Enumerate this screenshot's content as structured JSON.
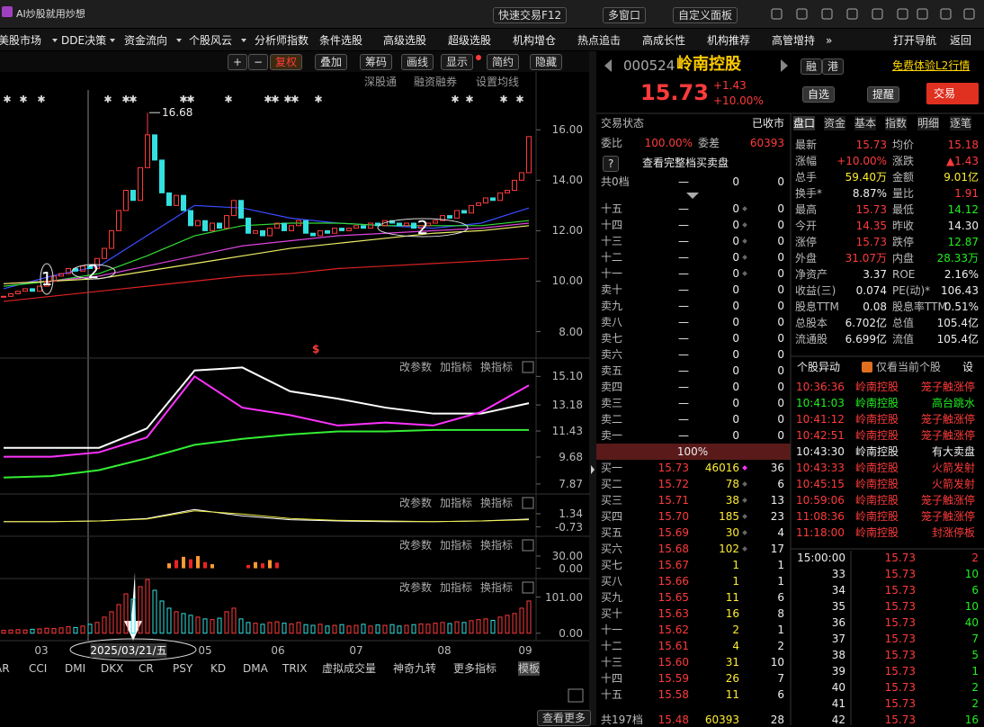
{
  "title_bar": {
    "app_name": "AI炒股就用炒想",
    "buttons": [
      "快速交易F12",
      "多窗口",
      "自定义面板"
    ]
  },
  "menu": {
    "items": [
      "美股市场",
      "DDE决策",
      "资金流向",
      "个股风云",
      "分析师指数",
      "条件选股",
      "高级选股",
      "超级选股",
      "机构增仓",
      "热点追击",
      "高成长性",
      "机构推荐",
      "高管增持",
      "»"
    ],
    "right": [
      "打开导航",
      "返回"
    ]
  },
  "toolbar": {
    "buttons": [
      "+",
      "−",
      "复权",
      "叠加",
      "筹码",
      "画线",
      "显示",
      "简约",
      "隐藏"
    ],
    "links": [
      "深股通",
      "融资融券",
      "设置均线"
    ]
  },
  "kline": {
    "ylim": [
      6.95,
      17.65
    ],
    "yticks": [
      {
        "value": 16,
        "label": "16.00"
      },
      {
        "value": 14,
        "label": "14.00"
      },
      {
        "value": 12,
        "label": "12.00"
      },
      {
        "value": 10,
        "label": "10.00"
      },
      {
        "value": 8,
        "label": "8.00"
      }
    ],
    "closes": [
      9.4,
      9.5,
      9.6,
      9.7,
      9.6,
      9.8,
      10.0,
      10.2,
      10.3,
      10.5,
      10.4,
      10.6,
      10.5,
      10.9,
      11.3,
      12.0,
      12.8,
      13.6,
      13.2,
      14.5,
      15.8,
      14.8,
      13.5,
      13.0,
      13.4,
      12.8,
      12.2,
      12.4,
      12.0,
      12.3,
      12.1,
      12.6,
      13.2,
      12.5,
      11.9,
      12.0,
      11.8,
      12.1,
      12.3,
      12.0,
      12.2,
      12.4,
      11.9,
      11.8,
      12.0,
      11.9,
      12.1,
      12.0,
      12.1,
      12.2,
      12.1,
      12.3,
      12.2,
      12.4,
      12.3,
      12.2,
      12.3,
      12.1,
      12.2,
      12.3,
      12.4,
      12.6,
      12.5,
      12.8,
      12.7,
      13.0,
      13.1,
      13.3,
      13.2,
      13.5,
      13.6,
      14.0,
      14.3,
      15.73
    ],
    "high": 16.68,
    "high_label": "16.68",
    "marker": "$",
    "annotations": [
      "1",
      "2",
      "2"
    ],
    "ma": [
      {
        "color": "#3a4cff",
        "values": [
          9.7,
          10.2,
          10.6,
          11.8,
          13.0,
          12.9,
          12.5,
          12.3,
          12.2,
          12.1,
          12.3,
          12.9
        ]
      },
      {
        "color": "#33dd33",
        "values": [
          9.8,
          10.0,
          10.3,
          11.0,
          11.8,
          12.2,
          12.3,
          12.3,
          12.2,
          12.2,
          12.2,
          12.4
        ]
      },
      {
        "color": "#dd44dd",
        "values": [
          9.9,
          10.0,
          10.2,
          10.6,
          11.0,
          11.4,
          11.6,
          11.8,
          11.9,
          12.0,
          12.1,
          12.3
        ]
      },
      {
        "color": "#eeee66",
        "values": [
          9.9,
          10.0,
          10.1,
          10.4,
          10.7,
          11.0,
          11.3,
          11.5,
          11.7,
          11.9,
          12.0,
          12.2
        ]
      },
      {
        "color": "#dd2222",
        "values": [
          9.2,
          9.4,
          9.6,
          9.8,
          10.0,
          10.2,
          10.3,
          10.5,
          10.6,
          10.7,
          10.8,
          10.9
        ]
      }
    ]
  },
  "panel_actions": [
    "改参数",
    "加指标",
    "换指标"
  ],
  "indicators": [
    {
      "ylim": [
        7.26,
        16.33
      ],
      "yticks": [
        {
          "value": 15.1,
          "label": "15.10"
        },
        13.18,
        11.43,
        9.68,
        7.87
      ],
      "lines": [
        {
          "color": "#ffffff",
          "values": [
            10.3,
            10.3,
            10.3,
            11.6,
            15.5,
            15.7,
            14.1,
            13.6,
            13.0,
            12.6,
            12.6,
            13.3
          ]
        },
        {
          "color": "#ff33ff",
          "values": [
            9.7,
            9.7,
            10.0,
            11.0,
            15.1,
            13.0,
            12.5,
            11.8,
            12.0,
            11.8,
            12.7,
            14.5
          ]
        },
        {
          "color": "#33ee33",
          "values": [
            8.3,
            8.4,
            8.8,
            9.6,
            10.5,
            10.9,
            11.2,
            11.4,
            11.4,
            11.5,
            11.5,
            11.5
          ]
        }
      ]
    },
    {
      "ylim": [
        -2.06,
        4.45
      ],
      "yticks": [
        1.34,
        -0.73
      ],
      "lines": [
        {
          "color": "#ffffff",
          "values": [
            0.1,
            0.1,
            0.2,
            0.6,
            2.0,
            1.0,
            0.4,
            0.2,
            0.1,
            0.1,
            0.2,
            0.5
          ]
        },
        {
          "color": "#eeee44",
          "values": [
            0.1,
            0.1,
            0.2,
            0.5,
            1.8,
            1.3,
            0.6,
            0.3,
            0.2,
            0.1,
            0.2,
            0.4
          ]
        }
      ]
    },
    {
      "ylim": [
        -23.1,
        78.5
      ],
      "yticks": [
        {
          "value": 30,
          "label": "30.00"
        },
        {
          "value": 0,
          "label": "0.00"
        }
      ],
      "bars": [
        0,
        0,
        0,
        0,
        0,
        0,
        0,
        0,
        0,
        0,
        0,
        0,
        0,
        0,
        0,
        0,
        0,
        0,
        0,
        0,
        0,
        0,
        0,
        12,
        20,
        28,
        22,
        30,
        15,
        10,
        0,
        0,
        0,
        0,
        8,
        15,
        12,
        20,
        14,
        0,
        0,
        0,
        0,
        0,
        0,
        0,
        0,
        0,
        0,
        0,
        0,
        0,
        0,
        0,
        0,
        0,
        0,
        0,
        0,
        0,
        0,
        0,
        0,
        0,
        0,
        0,
        0,
        0,
        0,
        0,
        0,
        0,
        0,
        0
      ]
    },
    {
      "ylim": [
        -20.7,
        152.8
      ],
      "yticks": [
        {
          "value": 101,
          "label": "101.00"
        },
        {
          "value": 0,
          "label": "0.00"
        }
      ],
      "bars": [
        8,
        9,
        10,
        9,
        11,
        12,
        14,
        13,
        15,
        18,
        16,
        20,
        25,
        30,
        45,
        60,
        80,
        110,
        95,
        130,
        150,
        120,
        90,
        70,
        60,
        55,
        50,
        45,
        40,
        38,
        42,
        60,
        70,
        40,
        30,
        28,
        25,
        30,
        32,
        28,
        26,
        30,
        24,
        22,
        25,
        20,
        22,
        24,
        20,
        22,
        25,
        20,
        23,
        22,
        24,
        20,
        22,
        24,
        26,
        25,
        28,
        30,
        27,
        32,
        30,
        35,
        38,
        40,
        36,
        45,
        50,
        55,
        70,
        90
      ]
    }
  ],
  "x_axis": {
    "months": [
      "03",
      "05",
      "06",
      "07",
      "08",
      "09"
    ],
    "cursor_date": "2025/03/21/五"
  },
  "indicator_tabs": [
    "AR",
    "CCI",
    "DMI",
    "DKX",
    "CR",
    "PSY",
    "KD",
    "DMA",
    "TRIX",
    "虚拟成交量",
    "神奇九转",
    "更多指标",
    "模板"
  ],
  "more": "查看更多",
  "quote": {
    "code": "000524",
    "name": "岭南控股",
    "tags": [
      "融",
      "港"
    ],
    "l2": "免费体验L2行情",
    "price": "15.73",
    "change": "+1.43",
    "pct": "+10.00%",
    "buttons": [
      "自选",
      "提醒",
      "交易"
    ],
    "status_label": "交易状态",
    "status": "已收市",
    "wb_label": "委比",
    "wb": "100.00%",
    "wc_label": "委差",
    "wc": "60393",
    "help": "?",
    "full_book": "查看完整档买卖盘",
    "ask_total": [
      "共0档",
      "—",
      "0",
      "0"
    ],
    "asks": [
      [
        "十五",
        "—",
        "0",
        "0"
      ],
      [
        "十四",
        "—",
        "0",
        "0"
      ],
      [
        "十三",
        "—",
        "0",
        "0"
      ],
      [
        "十二",
        "—",
        "0",
        "0"
      ],
      [
        "十一",
        "—",
        "0",
        "0"
      ],
      [
        "卖十",
        "—",
        "0",
        "0"
      ],
      [
        "卖九",
        "—",
        "0",
        "0"
      ],
      [
        "卖八",
        "—",
        "0",
        "0"
      ],
      [
        "卖七",
        "—",
        "0",
        "0"
      ],
      [
        "卖六",
        "—",
        "0",
        "0"
      ],
      [
        "卖五",
        "—",
        "0",
        "0"
      ],
      [
        "卖四",
        "—",
        "0",
        "0"
      ],
      [
        "卖三",
        "—",
        "0",
        "0"
      ],
      [
        "卖二",
        "—",
        "0",
        "0"
      ],
      [
        "卖一",
        "—",
        "0",
        "0"
      ]
    ],
    "mid": "100%",
    "bids": [
      [
        "买一",
        "15.73",
        "46016",
        "36"
      ],
      [
        "买二",
        "15.72",
        "78",
        "6"
      ],
      [
        "买三",
        "15.71",
        "38",
        "13"
      ],
      [
        "买四",
        "15.70",
        "185",
        "23"
      ],
      [
        "买五",
        "15.69",
        "30",
        "4"
      ],
      [
        "买六",
        "15.68",
        "102",
        "17"
      ],
      [
        "买七",
        "15.67",
        "1",
        "1"
      ],
      [
        "买八",
        "15.66",
        "1",
        "1"
      ],
      [
        "买九",
        "15.65",
        "11",
        "6"
      ],
      [
        "买十",
        "15.63",
        "16",
        "8"
      ],
      [
        "十一",
        "15.62",
        "2",
        "1"
      ],
      [
        "十二",
        "15.61",
        "4",
        "2"
      ],
      [
        "十三",
        "15.60",
        "31",
        "10"
      ],
      [
        "十四",
        "15.59",
        "26",
        "7"
      ],
      [
        "十五",
        "15.58",
        "11",
        "6"
      ]
    ],
    "bid_total": [
      "共197档",
      "15.48",
      "60393",
      "28"
    ],
    "tabs": [
      "盘口",
      "资金",
      "基本",
      "指数",
      "明细",
      "逐笔"
    ],
    "stats": [
      [
        "最新",
        "15.73",
        "均价",
        "15.18"
      ],
      [
        "涨幅",
        "+10.00%",
        "涨跌",
        "▲1.43"
      ],
      [
        "总手",
        "59.40万",
        "金额",
        "9.01亿"
      ],
      [
        "换手*",
        "8.87%",
        "量比",
        "1.91"
      ],
      [
        "最高",
        "15.73",
        "最低",
        "14.12"
      ],
      [
        "今开",
        "14.35",
        "昨收",
        "14.30"
      ],
      [
        "涨停",
        "15.73",
        "跌停",
        "12.87"
      ],
      [
        "外盘",
        "31.07万",
        "内盘",
        "28.33万"
      ],
      [
        "净资产",
        "3.37",
        "ROE",
        "2.16%"
      ],
      [
        "收益(三)",
        "0.074",
        "PE(动)*",
        "106.43"
      ],
      [
        "股息TTM",
        "0.08",
        "股息率TTM",
        "0.51%"
      ],
      [
        "总股本",
        "6.702亿",
        "总值",
        "105.4亿"
      ],
      [
        "流通股",
        "6.699亿",
        "流值",
        "105.4亿"
      ]
    ],
    "alerts_title": "个股异动",
    "alerts_filter": "仅看当前个股",
    "alerts_settings": "设",
    "alerts": [
      [
        "10:36:36",
        "岭南控股",
        "笼子触涨停"
      ],
      [
        "10:41:03",
        "岭南控股",
        "高台跳水"
      ],
      [
        "10:41:12",
        "岭南控股",
        "笼子触涨停"
      ],
      [
        "10:42:51",
        "岭南控股",
        "笼子触涨停"
      ],
      [
        "10:43:30",
        "岭南控股",
        "有大卖盘"
      ],
      [
        "10:43:33",
        "岭南控股",
        "火箭发射"
      ],
      [
        "10:45:15",
        "岭南控股",
        "火箭发射"
      ],
      [
        "10:59:06",
        "岭南控股",
        "笼子触涨停"
      ],
      [
        "11:08:36",
        "岭南控股",
        "笼子触涨停"
      ],
      [
        "11:18:00",
        "岭南控股",
        "封涨停板"
      ]
    ],
    "trades": [
      [
        "15:00:00",
        "15.73",
        "2"
      ],
      [
        "33",
        "15.73",
        "10"
      ],
      [
        "34",
        "15.73",
        "6"
      ],
      [
        "35",
        "15.73",
        "10"
      ],
      [
        "36",
        "15.73",
        "40"
      ],
      [
        "37",
        "15.73",
        "7"
      ],
      [
        "38",
        "15.73",
        "5"
      ],
      [
        "39",
        "15.73",
        "1"
      ],
      [
        "40",
        "15.73",
        "2"
      ],
      [
        "41",
        "15.73",
        "2"
      ],
      [
        "42",
        "15.73",
        "16"
      ]
    ]
  }
}
